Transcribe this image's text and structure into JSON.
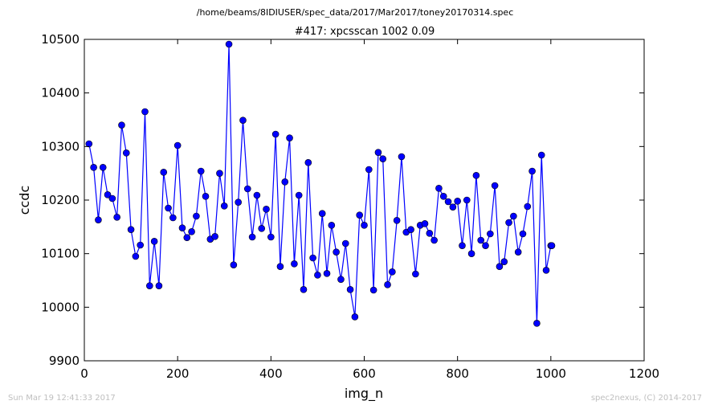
{
  "figure": {
    "suptitle": "/home/beams/8IDIUSER/spec_data/2017/Mar2017/toney20170314.spec",
    "footer_left": "Sun Mar 19 12:41:33 2017",
    "footer_right": "spec2nexus, (C) 2014-2017"
  },
  "chart_data": {
    "type": "line",
    "title": "#417: xpcsscan 1002 0.09",
    "xlabel": "img_n",
    "ylabel": "ccdc",
    "xlim": [
      0,
      1200
    ],
    "ylim": [
      9900,
      10500
    ],
    "xticks": [
      0,
      200,
      400,
      600,
      800,
      1000,
      1200
    ],
    "yticks": [
      9900,
      10000,
      10100,
      10200,
      10300,
      10400,
      10500
    ],
    "grid": false,
    "marker": "circle",
    "color": "#0000ff",
    "x": [
      10,
      20,
      30,
      40,
      50,
      60,
      70,
      80,
      90,
      100,
      110,
      120,
      130,
      140,
      150,
      160,
      170,
      180,
      190,
      200,
      210,
      220,
      230,
      240,
      250,
      260,
      270,
      280,
      290,
      300,
      310,
      320,
      330,
      340,
      350,
      360,
      370,
      380,
      390,
      400,
      410,
      420,
      430,
      440,
      450,
      460,
      470,
      480,
      490,
      500,
      510,
      520,
      530,
      540,
      550,
      560,
      570,
      580,
      590,
      600,
      610,
      620,
      630,
      640,
      650,
      660,
      670,
      680,
      690,
      700,
      710,
      720,
      730,
      740,
      750,
      760,
      770,
      780,
      790,
      800,
      810,
      820,
      830,
      840,
      850,
      860,
      870,
      880,
      890,
      900,
      910,
      920,
      930,
      940,
      950,
      960,
      970,
      980,
      990,
      1000,
      1002
    ],
    "y": [
      10305,
      10261,
      10163,
      10261,
      10210,
      10203,
      10168,
      10340,
      10288,
      10145,
      10095,
      10116,
      10365,
      10040,
      10123,
      10040,
      10252,
      10185,
      10167,
      10302,
      10148,
      10130,
      10141,
      10170,
      10254,
      10207,
      10127,
      10132,
      10250,
      10189,
      10491,
      10079,
      10196,
      10349,
      10221,
      10131,
      10209,
      10147,
      10183,
      10131,
      10323,
      10076,
      10234,
      10316,
      10081,
      10209,
      10033,
      10270,
      10092,
      10060,
      10175,
      10063,
      10153,
      10103,
      10052,
      10119,
      10033,
      9982,
      10172,
      10153,
      10257,
      10032,
      10289,
      10277,
      10042,
      10066,
      10162,
      10281,
      10140,
      10145,
      10062,
      10153,
      10156,
      10138,
      10125,
      10222,
      10207,
      10197,
      10187,
      10198,
      10115,
      10200,
      10100,
      10246,
      10125,
      10115,
      10137,
      10227,
      10076,
      10085,
      10158,
      10170,
      10103,
      10137,
      10188,
      10254,
      9970,
      10284,
      10069,
      10115,
      10115
    ]
  }
}
